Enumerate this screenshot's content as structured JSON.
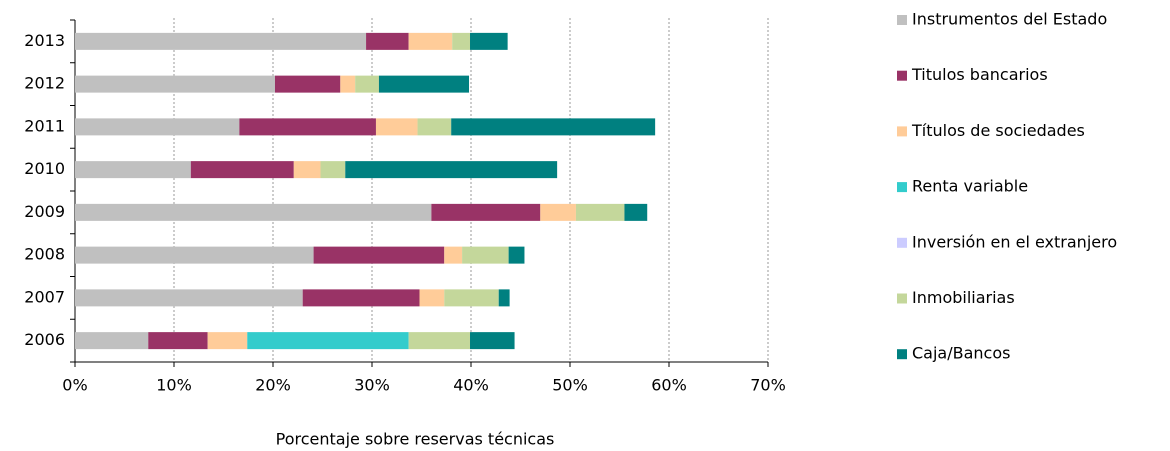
{
  "chart_data": {
    "type": "stacked-bar-horizontal",
    "xlabel": "Porcentaje sobre reservas técnicas",
    "categories": [
      "2013",
      "2012",
      "2011",
      "2010",
      "2009",
      "2008",
      "2007",
      "2006"
    ],
    "series": [
      {
        "name": "Instrumentos del Estado",
        "color": "#c0c0c0",
        "values": [
          29.4,
          20.2,
          16.6,
          11.7,
          36.0,
          24.1,
          23.0,
          7.4
        ]
      },
      {
        "name": "Titulos bancarios",
        "color": "#993366",
        "values": [
          4.3,
          6.6,
          13.8,
          10.4,
          11.0,
          13.2,
          11.8,
          6.0
        ]
      },
      {
        "name": "Títulos de sociedades",
        "color": "#ffcc99",
        "values": [
          4.4,
          1.5,
          4.2,
          2.7,
          3.6,
          1.8,
          2.5,
          4.0
        ]
      },
      {
        "name": "Renta variable",
        "color": "#33cccc",
        "values": [
          0,
          0,
          0,
          0,
          0,
          0,
          0,
          16.3
        ]
      },
      {
        "name": "Inversión en el extranjero",
        "color": "#ccccff",
        "values": [
          0,
          0,
          0,
          0,
          0,
          0,
          0,
          0
        ]
      },
      {
        "name": "Inmobiliarias",
        "color": "#c4d79b",
        "values": [
          1.8,
          2.4,
          3.4,
          2.5,
          4.9,
          4.7,
          5.5,
          6.2
        ]
      },
      {
        "name": "Caja/Bancos",
        "color": "#008080",
        "values": [
          3.8,
          9.1,
          20.6,
          21.4,
          2.3,
          1.6,
          1.1,
          4.5
        ]
      }
    ],
    "xlim": [
      0,
      70
    ],
    "xticks": [
      {
        "value": 0,
        "label": "0%"
      },
      {
        "value": 10,
        "label": "10%"
      },
      {
        "value": 20,
        "label": "20%"
      },
      {
        "value": 30,
        "label": "30%"
      },
      {
        "value": 40,
        "label": "40%"
      },
      {
        "value": 50,
        "label": "50%"
      },
      {
        "value": 60,
        "label": "60%"
      },
      {
        "value": 70,
        "label": "70%"
      }
    ],
    "grid": true,
    "legend": "right"
  }
}
